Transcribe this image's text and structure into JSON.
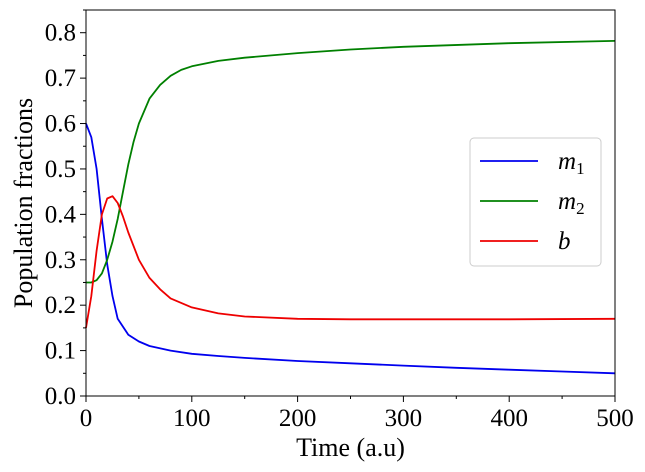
{
  "chart_data": {
    "type": "line",
    "title": "",
    "xlabel": "Time (a.u)",
    "ylabel": "Population fractions",
    "xlim": [
      0,
      500
    ],
    "ylim": [
      0,
      0.85
    ],
    "x_ticks": [
      0,
      100,
      200,
      300,
      400,
      500
    ],
    "x_tick_labels": [
      "0",
      "100",
      "200",
      "300",
      "400",
      "500"
    ],
    "y_ticks": [
      0,
      0.1,
      0.2,
      0.3,
      0.4,
      0.5,
      0.6,
      0.7,
      0.8
    ],
    "y_tick_labels": [
      "0.0",
      "0.1",
      "0.2",
      "0.3",
      "0.4",
      "0.5",
      "0.6",
      "0.7",
      "0.8"
    ],
    "grid": false,
    "legend_position": "center-right",
    "series": [
      {
        "name": "m1",
        "legend_base": "m",
        "legend_sub": "1",
        "color": "#0000ee",
        "x": [
          0,
          5,
          10,
          15,
          20,
          25,
          30,
          40,
          50,
          60,
          80,
          100,
          125,
          150,
          200,
          250,
          300,
          350,
          400,
          450,
          500
        ],
        "y": [
          0.6,
          0.57,
          0.5,
          0.39,
          0.29,
          0.22,
          0.17,
          0.135,
          0.12,
          0.11,
          0.1,
          0.093,
          0.088,
          0.084,
          0.077,
          0.072,
          0.067,
          0.062,
          0.058,
          0.054,
          0.05
        ]
      },
      {
        "name": "m2",
        "legend_base": "m",
        "legend_sub": "2",
        "color": "#008000",
        "x": [
          0,
          5,
          10,
          15,
          20,
          25,
          30,
          35,
          40,
          45,
          50,
          60,
          70,
          80,
          90,
          100,
          125,
          150,
          200,
          250,
          300,
          400,
          500
        ],
        "y": [
          0.25,
          0.25,
          0.255,
          0.27,
          0.3,
          0.34,
          0.39,
          0.45,
          0.51,
          0.56,
          0.6,
          0.655,
          0.685,
          0.705,
          0.718,
          0.726,
          0.738,
          0.745,
          0.755,
          0.763,
          0.769,
          0.777,
          0.782
        ]
      },
      {
        "name": "b",
        "legend_base": "b",
        "legend_sub": "",
        "color": "#ee0000",
        "x": [
          0,
          5,
          10,
          15,
          20,
          25,
          30,
          35,
          40,
          50,
          60,
          70,
          80,
          100,
          125,
          150,
          200,
          250,
          300,
          400,
          500
        ],
        "y": [
          0.15,
          0.22,
          0.32,
          0.4,
          0.435,
          0.44,
          0.425,
          0.395,
          0.36,
          0.3,
          0.26,
          0.235,
          0.215,
          0.195,
          0.182,
          0.175,
          0.17,
          0.169,
          0.169,
          0.169,
          0.17
        ]
      }
    ]
  }
}
